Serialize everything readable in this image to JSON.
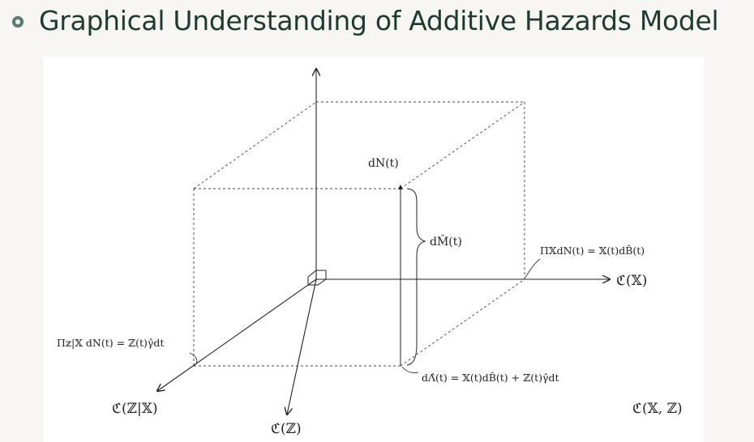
{
  "header": {
    "title": "Graphical Understanding of Additive Hazards Model"
  },
  "diagram": {
    "labels": {
      "dN": "dN(t)",
      "dM": "dM̂(t)",
      "proj_x": "Π𝕏dN(t) = 𝕏(t)dB̂(t)",
      "proj_zx": "Π𝕫|𝕏 dN(t) = ℤ(t)γ̂dt",
      "dLambda": "dΛ̂(t) = 𝕏(t)dB̂(t) + ℤ(t)γ̂dt",
      "axis_x": "ℭ(𝕏)",
      "axis_zx": "ℭ(ℤ|𝕏)",
      "axis_z": "ℭ(ℤ)",
      "plane_xz": "ℭ(𝕏, ℤ)"
    }
  },
  "colors": {
    "title": "#1d3a33",
    "bullet": "#5b7d75",
    "background": "#f7f6f2",
    "figure": "#ffffff",
    "ink": "#222222"
  }
}
